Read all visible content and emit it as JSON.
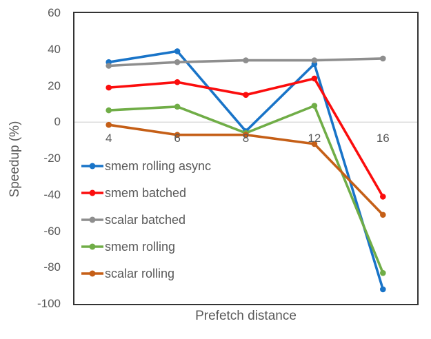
{
  "chart_data": {
    "type": "line",
    "title": "",
    "xlabel": "Prefetch distance",
    "ylabel": "Speedup (%)",
    "categories": [
      "4",
      "6",
      "8",
      "12",
      "16"
    ],
    "y_ticks": [
      60,
      40,
      20,
      0,
      -20,
      -40,
      -60,
      -80,
      -100
    ],
    "ylim": [
      -100,
      60
    ],
    "grid": "zero-gridline-only",
    "legend_position": "inside-left-middle",
    "marker": "circle",
    "series": [
      {
        "name": "smem rolling async",
        "color": "#1974C8",
        "values": [
          33,
          39,
          -5,
          32,
          -92
        ]
      },
      {
        "name": "smem batched",
        "color": "#FB0D0D",
        "values": [
          19,
          22,
          15,
          24,
          -41
        ]
      },
      {
        "name": "scalar batched",
        "color": "#8E8E8E",
        "values": [
          31,
          33,
          34,
          34,
          35
        ]
      },
      {
        "name": "smem rolling",
        "color": "#70AD47",
        "values": [
          6.5,
          8.5,
          -6,
          9,
          -83
        ]
      },
      {
        "name": "scalar rolling",
        "color": "#C55F17",
        "values": [
          -1.5,
          -7,
          -7,
          -12,
          -51
        ]
      }
    ]
  },
  "style_colors": {
    "text": "#595959",
    "plot_border": "#333333",
    "zero_line": "#D6D6D6",
    "background": "#FFFFFF"
  }
}
